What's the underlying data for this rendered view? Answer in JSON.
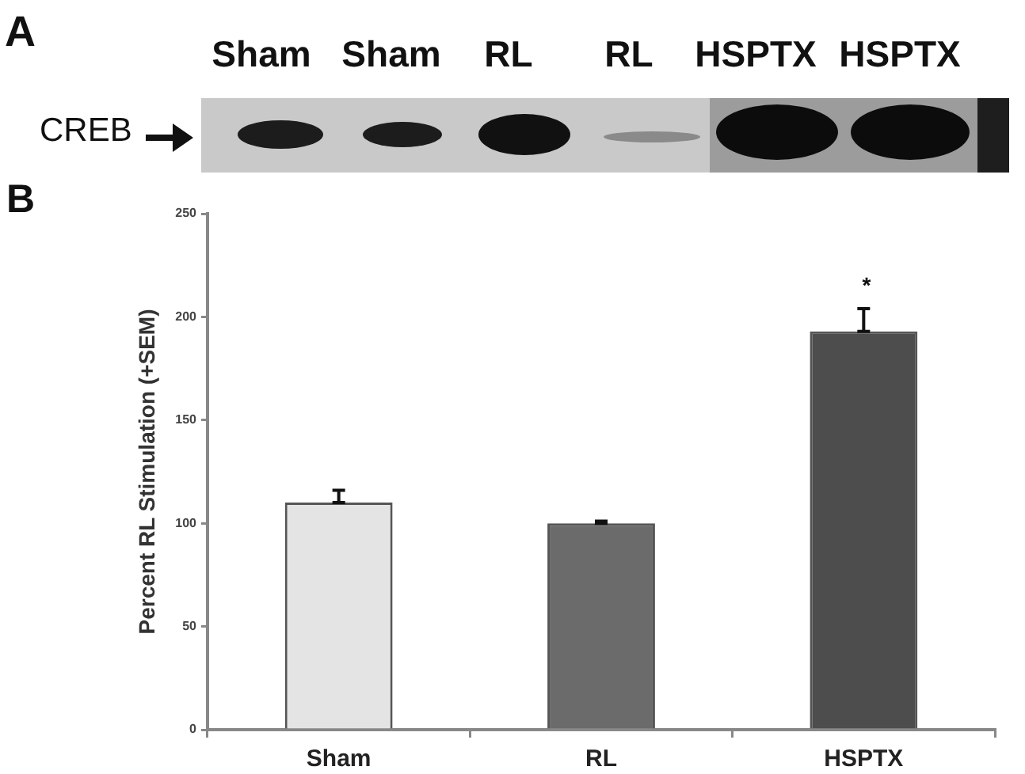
{
  "chart_data": {
    "type": "bar",
    "ylabel": "Percent RL Stimulation (+SEM)",
    "categories": [
      "Sham",
      "RL",
      "HSPTX"
    ],
    "values": [
      110,
      100,
      193
    ],
    "colors": [
      "#e4e4e4",
      "#6b6b6b",
      "#4d4d4d"
    ],
    "errors": [
      [
        110,
        116
      ],
      [
        100,
        101
      ],
      [
        193,
        204
      ]
    ],
    "ylim": [
      0,
      250
    ],
    "yticks": [
      0,
      50,
      100,
      150,
      200,
      250
    ],
    "grid": false,
    "legend": false,
    "annotations": [
      "A",
      "Sham",
      "Sham",
      "RL",
      "RL",
      "HSPTX",
      "HSPTX",
      "CREB",
      "B",
      "*"
    ]
  }
}
